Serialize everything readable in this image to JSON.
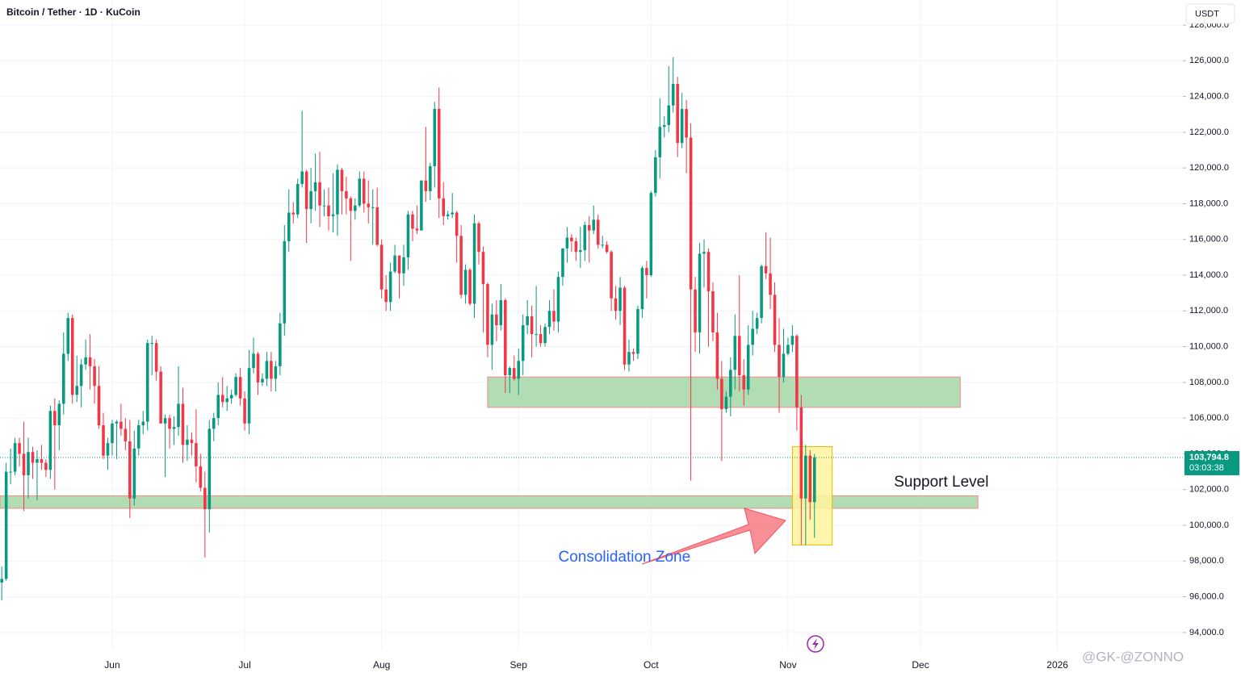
{
  "chart_data": {
    "type": "candlestick",
    "title": "Bitcoin / Tether · 1D · KuCoin",
    "currency": "USDT",
    "up_color": "#089981",
    "down_color": "#f23645",
    "last_price": 103794.8,
    "last_price_label": "103,794.8",
    "countdown": "03:03:38",
    "watermark": "@GK-@ZONNO",
    "xlim": [
      -0.4,
      267.4
    ],
    "xticks": [
      {
        "value": 25,
        "label": "Jun"
      },
      {
        "value": 55,
        "label": "Jul"
      },
      {
        "value": 86,
        "label": "Aug"
      },
      {
        "value": 117,
        "label": "Sep"
      },
      {
        "value": 147,
        "label": "Oct"
      },
      {
        "value": 178,
        "label": "Nov"
      },
      {
        "value": 208,
        "label": "Dec"
      },
      {
        "value": 239,
        "label": "2026"
      }
    ],
    "ylim": [
      93000,
      129400
    ],
    "yticks": [
      {
        "value": 94000,
        "label": "94,000.0"
      },
      {
        "value": 96000,
        "label": "96,000.0"
      },
      {
        "value": 98000,
        "label": "98,000.0"
      },
      {
        "value": 100000,
        "label": "100,000.0"
      },
      {
        "value": 102000,
        "label": "102,000.0"
      },
      {
        "value": 104000,
        "label": "104,000.0"
      },
      {
        "value": 106000,
        "label": "106,000.0"
      },
      {
        "value": 108000,
        "label": "108,000.0"
      },
      {
        "value": 110000,
        "label": "110,000.0"
      },
      {
        "value": 112000,
        "label": "112,000.0"
      },
      {
        "value": 114000,
        "label": "114,000.0"
      },
      {
        "value": 116000,
        "label": "116,000.0"
      },
      {
        "value": 118000,
        "label": "118,000.0"
      },
      {
        "value": 120000,
        "label": "120,000.0"
      },
      {
        "value": 122000,
        "label": "122,000.0"
      },
      {
        "value": 124000,
        "label": "124,000.0"
      },
      {
        "value": 126000,
        "label": "126,000.0"
      },
      {
        "value": 128000,
        "label": "128,000.0"
      }
    ],
    "grid": true,
    "zones": [
      {
        "x": [
          110,
          217
        ],
        "y": [
          106600,
          108300
        ],
        "color": "#a5d6a7"
      },
      {
        "x": [
          -0.4,
          221
        ],
        "y": [
          100950,
          101650
        ],
        "color": "#a5d6a7"
      },
      {
        "x": [
          179,
          188
        ],
        "y": [
          98900,
          104400
        ],
        "color": "#fff59d"
      }
    ],
    "annotations": [
      {
        "text": "Support Level",
        "x": 202,
        "y": 102400,
        "color": "#131722"
      },
      {
        "text": "Consolidation Zone",
        "x": 126,
        "y": 98200,
        "color": "#2962ff"
      }
    ],
    "candles": [
      [
        96800,
        97700,
        95800,
        97000
      ],
      [
        97000,
        103500,
        96900,
        103000
      ],
      [
        103000,
        104300,
        102300,
        103000
      ],
      [
        103000,
        104900,
        102800,
        104600
      ],
      [
        104600,
        104900,
        103300,
        104000
      ],
      [
        104000,
        105800,
        100800,
        102800
      ],
      [
        102800,
        104900,
        101500,
        104100
      ],
      [
        104100,
        104400,
        102600,
        103500
      ],
      [
        103500,
        104200,
        101400,
        103700
      ],
      [
        103700,
        104500,
        103100,
        103500
      ],
      [
        103500,
        103700,
        102700,
        103100
      ],
      [
        103100,
        106700,
        102600,
        106400
      ],
      [
        106400,
        107100,
        102000,
        105600
      ],
      [
        105600,
        107000,
        104200,
        106800
      ],
      [
        106800,
        110800,
        106200,
        109600
      ],
      [
        109600,
        111900,
        109200,
        111600
      ],
      [
        111600,
        111800,
        106800,
        107300
      ],
      [
        107300,
        109500,
        106900,
        107800
      ],
      [
        107800,
        109300,
        106600,
        109000
      ],
      [
        109000,
        110400,
        108700,
        109400
      ],
      [
        109400,
        110700,
        107600,
        108900
      ],
      [
        108900,
        109300,
        106800,
        107800
      ],
      [
        107800,
        108900,
        105400,
        105600
      ],
      [
        105600,
        106300,
        103700,
        103900
      ],
      [
        103900,
        104900,
        103100,
        104600
      ],
      [
        104600,
        105900,
        103900,
        105700
      ],
      [
        105700,
        105900,
        103700,
        105800
      ],
      [
        105800,
        106800,
        105000,
        105400
      ],
      [
        105400,
        106000,
        104200,
        104700
      ],
      [
        104700,
        105900,
        100400,
        101500
      ],
      [
        101500,
        105300,
        101100,
        104300
      ],
      [
        104300,
        105900,
        103900,
        105600
      ],
      [
        105600,
        106400,
        105100,
        105800
      ],
      [
        105800,
        110400,
        105300,
        110200
      ],
      [
        110200,
        110600,
        108400,
        110200
      ],
      [
        110200,
        110400,
        108100,
        108600
      ],
      [
        108600,
        108900,
        105700,
        105700
      ],
      [
        105700,
        106200,
        102700,
        106000
      ],
      [
        106000,
        106200,
        104300,
        105400
      ],
      [
        105400,
        106100,
        104500,
        105500
      ],
      [
        105500,
        108900,
        105000,
        106800
      ],
      [
        106800,
        107700,
        103500,
        104500
      ],
      [
        104500,
        105600,
        103600,
        104800
      ],
      [
        104800,
        105200,
        103900,
        104600
      ],
      [
        104600,
        106500,
        102400,
        103300
      ],
      [
        103300,
        104000,
        101900,
        102100
      ],
      [
        102100,
        103000,
        98200,
        100900
      ],
      [
        100900,
        105900,
        99600,
        105400
      ],
      [
        105400,
        106300,
        104700,
        106000
      ],
      [
        106000,
        108000,
        105600,
        107300
      ],
      [
        107300,
        108300,
        106600,
        106900
      ],
      [
        106900,
        107800,
        106400,
        107100
      ],
      [
        107100,
        107600,
        106800,
        107300
      ],
      [
        107300,
        108500,
        107200,
        108300
      ],
      [
        108300,
        108800,
        106700,
        107100
      ],
      [
        107100,
        107500,
        105300,
        105700
      ],
      [
        105700,
        109800,
        105100,
        108800
      ],
      [
        108800,
        110500,
        108500,
        109600
      ],
      [
        109600,
        109700,
        107300,
        108000
      ],
      [
        108000,
        108500,
        107800,
        108200
      ],
      [
        108200,
        109700,
        107800,
        109200
      ],
      [
        109200,
        109700,
        107500,
        108200
      ],
      [
        108200,
        109200,
        107500,
        108900
      ],
      [
        108900,
        111900,
        108400,
        111300
      ],
      [
        111300,
        116800,
        110600,
        115900
      ],
      [
        115900,
        118800,
        115300,
        117500
      ],
      [
        117500,
        118100,
        116900,
        117400
      ],
      [
        117400,
        119400,
        117200,
        119100
      ],
      [
        119100,
        123200,
        118900,
        119800
      ],
      [
        119800,
        119900,
        115800,
        117700
      ],
      [
        117700,
        120000,
        116900,
        118700
      ],
      [
        118700,
        120800,
        117600,
        119200
      ],
      [
        119200,
        120900,
        116700,
        117900
      ],
      [
        117900,
        118800,
        117300,
        117900
      ],
      [
        117900,
        118900,
        116500,
        117300
      ],
      [
        117300,
        119700,
        116400,
        117400
      ],
      [
        117400,
        120200,
        116200,
        119900
      ],
      [
        119900,
        120000,
        117400,
        118700
      ],
      [
        118700,
        119500,
        117400,
        118300
      ],
      [
        118300,
        118400,
        114800,
        117600
      ],
      [
        117600,
        118300,
        117100,
        117900
      ],
      [
        117900,
        119800,
        117800,
        119400
      ],
      [
        119400,
        119800,
        117500,
        118000
      ],
      [
        118000,
        119300,
        116900,
        117800
      ],
      [
        117800,
        118800,
        115700,
        117800
      ],
      [
        117800,
        118900,
        115600,
        115700
      ],
      [
        115700,
        116000,
        112700,
        113200
      ],
      [
        113200,
        114000,
        112000,
        112500
      ],
      [
        112500,
        114700,
        112000,
        114200
      ],
      [
        114200,
        115700,
        114100,
        115100
      ],
      [
        115100,
        115100,
        112700,
        114100
      ],
      [
        114100,
        115700,
        113400,
        115000
      ],
      [
        115000,
        117600,
        114300,
        117400
      ],
      [
        117400,
        117600,
        115900,
        116600
      ],
      [
        116600,
        117900,
        116300,
        116500
      ],
      [
        116500,
        119300,
        116500,
        119300
      ],
      [
        119300,
        122300,
        118100,
        118700
      ],
      [
        118700,
        120300,
        118200,
        120100
      ],
      [
        120100,
        123700,
        118900,
        123300
      ],
      [
        123300,
        124500,
        117200,
        118300
      ],
      [
        118300,
        119200,
        116800,
        117300
      ],
      [
        117300,
        117600,
        117100,
        117400
      ],
      [
        117400,
        118600,
        117200,
        117500
      ],
      [
        117500,
        117600,
        114700,
        116200
      ],
      [
        116200,
        116800,
        112700,
        112900
      ],
      [
        112900,
        114600,
        112400,
        114300
      ],
      [
        114300,
        114400,
        112300,
        112400
      ],
      [
        112400,
        117400,
        111600,
        116900
      ],
      [
        116900,
        117000,
        114600,
        115300
      ],
      [
        115300,
        115600,
        110800,
        113500
      ],
      [
        113500,
        113600,
        109400,
        110100
      ],
      [
        110100,
        112400,
        108700,
        111800
      ],
      [
        111800,
        112600,
        110300,
        111200
      ],
      [
        111200,
        113500,
        110900,
        112600
      ],
      [
        112600,
        112700,
        107400,
        108400
      ],
      [
        108400,
        108900,
        107400,
        108800
      ],
      [
        108800,
        109500,
        108100,
        108200
      ],
      [
        108200,
        109900,
        107300,
        109200
      ],
      [
        109200,
        111800,
        108400,
        111200
      ],
      [
        111200,
        112600,
        110700,
        111700
      ],
      [
        111700,
        112300,
        109400,
        110700
      ],
      [
        110700,
        113400,
        110000,
        110700
      ],
      [
        110700,
        111200,
        110000,
        110200
      ],
      [
        110200,
        111300,
        110000,
        111100
      ],
      [
        111100,
        112600,
        110700,
        112000
      ],
      [
        112000,
        113200,
        110900,
        111400
      ],
      [
        111400,
        114200,
        110800,
        113900
      ],
      [
        113900,
        115500,
        113400,
        115500
      ],
      [
        115500,
        116700,
        114700,
        116100
      ],
      [
        116100,
        116300,
        115300,
        115900
      ],
      [
        115900,
        116100,
        114800,
        115300
      ],
      [
        115300,
        116700,
        114400,
        115400
      ],
      [
        115400,
        117000,
        114800,
        116800
      ],
      [
        116800,
        117300,
        114700,
        116500
      ],
      [
        116500,
        117900,
        116300,
        117100
      ],
      [
        117100,
        117400,
        115500,
        115700
      ],
      [
        115700,
        116200,
        115500,
        115700
      ],
      [
        115700,
        115900,
        115200,
        115300
      ],
      [
        115300,
        115400,
        112000,
        112700
      ],
      [
        112700,
        113400,
        111500,
        112000
      ],
      [
        112000,
        113900,
        111200,
        113300
      ],
      [
        113300,
        113400,
        108700,
        109000
      ],
      [
        109000,
        110400,
        108600,
        109700
      ],
      [
        109700,
        109900,
        109200,
        109600
      ],
      [
        109600,
        112300,
        109300,
        112100
      ],
      [
        112100,
        114500,
        111600,
        114400
      ],
      [
        114400,
        114800,
        112700,
        114000
      ],
      [
        114000,
        118700,
        113900,
        118600
      ],
      [
        118600,
        121000,
        118400,
        120600
      ],
      [
        120600,
        123900,
        119400,
        122300
      ],
      [
        122300,
        122900,
        121700,
        122400
      ],
      [
        122400,
        125700,
        122000,
        123500
      ],
      [
        123500,
        126200,
        123100,
        124700
      ],
      [
        124700,
        125100,
        120600,
        121400
      ],
      [
        121400,
        124200,
        121100,
        123300
      ],
      [
        123300,
        123800,
        119700,
        121700
      ],
      [
        121700,
        122500,
        102500,
        113200
      ],
      [
        113200,
        113900,
        109700,
        110800
      ],
      [
        110800,
        115800,
        109600,
        115200
      ],
      [
        115200,
        116000,
        113300,
        115300
      ],
      [
        115300,
        115500,
        110000,
        113100
      ],
      [
        113100,
        113600,
        110300,
        110800
      ],
      [
        110800,
        111900,
        107600,
        108200
      ],
      [
        108200,
        109200,
        103600,
        106500
      ],
      [
        106500,
        107500,
        106300,
        107200
      ],
      [
        107200,
        109400,
        106100,
        108700
      ],
      [
        108700,
        111800,
        107600,
        110600
      ],
      [
        110600,
        114000,
        107500,
        108400
      ],
      [
        108400,
        109300,
        106700,
        107600
      ],
      [
        107600,
        111200,
        107300,
        110100
      ],
      [
        110100,
        112000,
        109500,
        111000
      ],
      [
        111000,
        111900,
        110700,
        111600
      ],
      [
        111600,
        114600,
        111300,
        114500
      ],
      [
        114500,
        116400,
        113800,
        114100
      ],
      [
        114100,
        116100,
        112100,
        112900
      ],
      [
        112900,
        113600,
        109700,
        110100
      ],
      [
        110100,
        111600,
        106300,
        108300
      ],
      [
        108300,
        111000,
        108000,
        109600
      ],
      [
        109600,
        110500,
        109500,
        110100
      ],
      [
        110100,
        111200,
        109700,
        110600
      ],
      [
        110600,
        110700,
        105300,
        106600
      ],
      [
        106600,
        107300,
        98900,
        101500
      ],
      [
        101500,
        104500,
        98900,
        103900
      ],
      [
        103900,
        104200,
        100300,
        101300
      ],
      [
        101300,
        104000,
        99300,
        103800
      ]
    ]
  }
}
